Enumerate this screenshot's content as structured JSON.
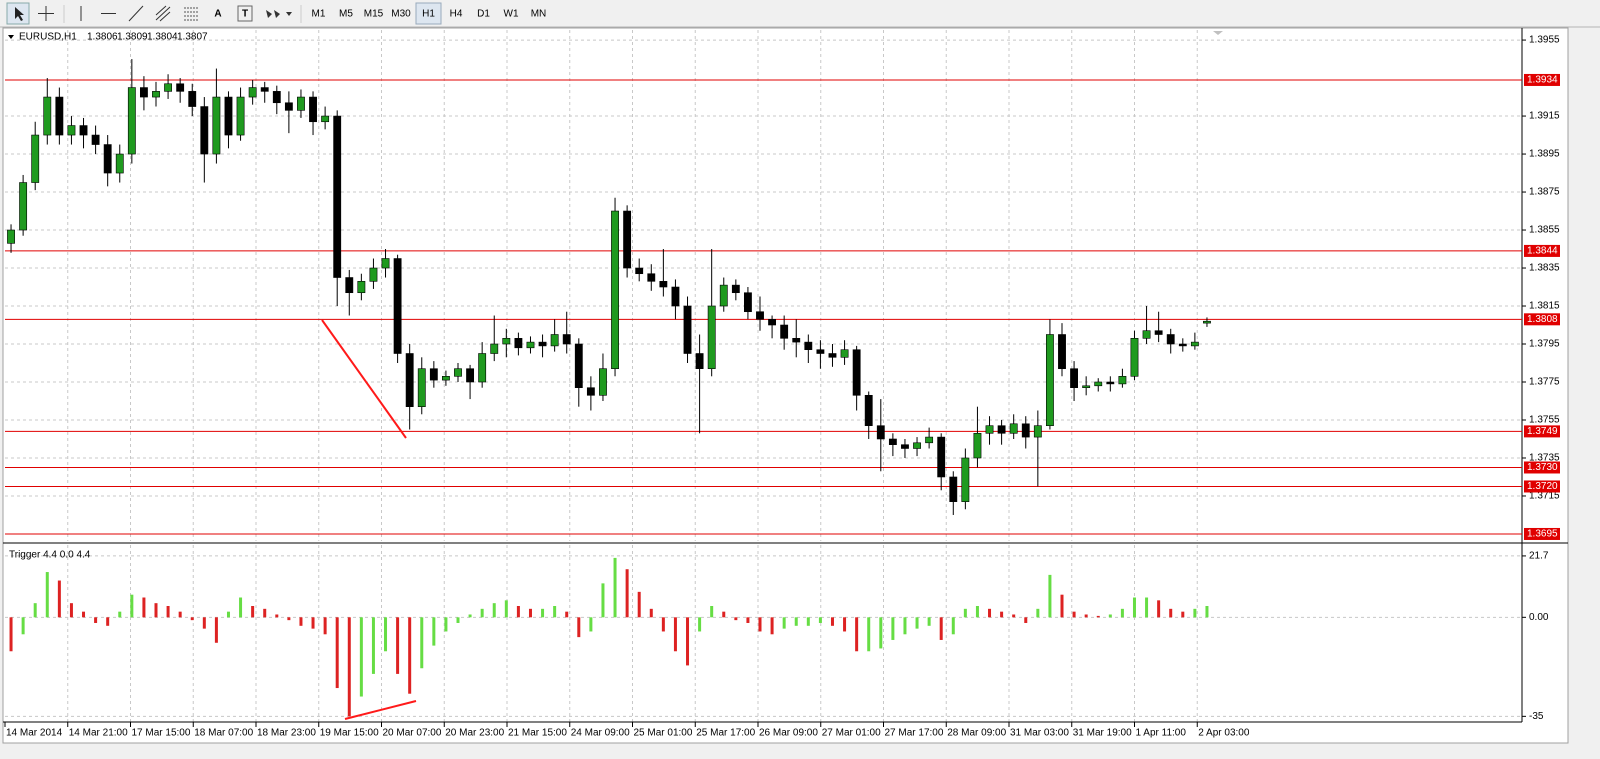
{
  "toolbar": {
    "timeframes": [
      "M1",
      "M5",
      "M15",
      "M30",
      "H1",
      "H4",
      "D1",
      "W1",
      "MN"
    ],
    "active": "H1",
    "text_tools": [
      "A",
      "T"
    ]
  },
  "chart_data": [
    {
      "type": "candlestick",
      "title": "EURUSD,H1",
      "up_color": "#1f9a1f",
      "down_color": "#000000",
      "wick_color": "#000000",
      "candles": [
        [
          1.3848,
          1.3858,
          1.3843,
          1.3855
        ],
        [
          1.3855,
          1.3884,
          1.3852,
          1.388
        ],
        [
          1.388,
          1.3912,
          1.3876,
          1.3905
        ],
        [
          1.3905,
          1.3935,
          1.39,
          1.3925
        ],
        [
          1.3925,
          1.393,
          1.39,
          1.3905
        ],
        [
          1.3905,
          1.3915,
          1.39,
          1.391
        ],
        [
          1.391,
          1.3914,
          1.3898,
          1.3905
        ],
        [
          1.3905,
          1.391,
          1.3895,
          1.39
        ],
        [
          1.39,
          1.3905,
          1.3878,
          1.3885
        ],
        [
          1.3885,
          1.39,
          1.388,
          1.3895
        ],
        [
          1.3895,
          1.3945,
          1.389,
          1.393
        ],
        [
          1.393,
          1.3936,
          1.3918,
          1.3925
        ],
        [
          1.3925,
          1.3933,
          1.392,
          1.3928
        ],
        [
          1.3928,
          1.3937,
          1.3924,
          1.3932
        ],
        [
          1.3932,
          1.3935,
          1.3922,
          1.3928
        ],
        [
          1.3928,
          1.3932,
          1.3915,
          1.392
        ],
        [
          1.392,
          1.3925,
          1.388,
          1.3895
        ],
        [
          1.3895,
          1.394,
          1.389,
          1.3925
        ],
        [
          1.3925,
          1.3928,
          1.3898,
          1.3905
        ],
        [
          1.3905,
          1.393,
          1.3902,
          1.3925
        ],
        [
          1.3925,
          1.3934,
          1.3921,
          1.393
        ],
        [
          1.393,
          1.3933,
          1.3922,
          1.3928
        ],
        [
          1.3928,
          1.3931,
          1.3916,
          1.3922
        ],
        [
          1.3922,
          1.3928,
          1.3906,
          1.3918
        ],
        [
          1.3918,
          1.3929,
          1.3914,
          1.3925
        ],
        [
          1.3925,
          1.3928,
          1.3905,
          1.3912
        ],
        [
          1.3912,
          1.392,
          1.3908,
          1.3915
        ],
        [
          1.3915,
          1.3918,
          1.3815,
          1.383
        ],
        [
          1.383,
          1.3834,
          1.381,
          1.3822
        ],
        [
          1.3822,
          1.3832,
          1.3818,
          1.3828
        ],
        [
          1.3828,
          1.384,
          1.3824,
          1.3835
        ],
        [
          1.3835,
          1.3845,
          1.383,
          1.384
        ],
        [
          1.384,
          1.3842,
          1.3785,
          1.379
        ],
        [
          1.379,
          1.3795,
          1.375,
          1.3762
        ],
        [
          1.3762,
          1.3788,
          1.3758,
          1.3782
        ],
        [
          1.3782,
          1.3786,
          1.3772,
          1.3776
        ],
        [
          1.3776,
          1.3781,
          1.3773,
          1.3778
        ],
        [
          1.3778,
          1.3785,
          1.3775,
          1.3782
        ],
        [
          1.3782,
          1.3784,
          1.3766,
          1.3775
        ],
        [
          1.3775,
          1.3796,
          1.3772,
          1.379
        ],
        [
          1.379,
          1.381,
          1.3786,
          1.3795
        ],
        [
          1.3795,
          1.3803,
          1.3788,
          1.3798
        ],
        [
          1.3798,
          1.3801,
          1.3789,
          1.3793
        ],
        [
          1.3793,
          1.3799,
          1.379,
          1.3796
        ],
        [
          1.3796,
          1.38,
          1.3788,
          1.3794
        ],
        [
          1.3794,
          1.3808,
          1.3791,
          1.38
        ],
        [
          1.38,
          1.3812,
          1.379,
          1.3795
        ],
        [
          1.3795,
          1.3798,
          1.3762,
          1.3772
        ],
        [
          1.3772,
          1.3778,
          1.376,
          1.3768
        ],
        [
          1.3768,
          1.379,
          1.3765,
          1.3782
        ],
        [
          1.3782,
          1.3872,
          1.3778,
          1.3865
        ],
        [
          1.3865,
          1.3868,
          1.383,
          1.3835
        ],
        [
          1.3835,
          1.384,
          1.3828,
          1.3832
        ],
        [
          1.3832,
          1.3837,
          1.3823,
          1.3828
        ],
        [
          1.3828,
          1.3845,
          1.382,
          1.3825
        ],
        [
          1.3825,
          1.3829,
          1.3808,
          1.3815
        ],
        [
          1.3815,
          1.382,
          1.3785,
          1.379
        ],
        [
          1.379,
          1.38,
          1.3748,
          1.3782
        ],
        [
          1.3782,
          1.3845,
          1.3778,
          1.3815
        ],
        [
          1.3815,
          1.383,
          1.3812,
          1.3826
        ],
        [
          1.3826,
          1.3829,
          1.3818,
          1.3822
        ],
        [
          1.3822,
          1.3825,
          1.3808,
          1.3812
        ],
        [
          1.3812,
          1.382,
          1.3802,
          1.3808
        ],
        [
          1.3808,
          1.381,
          1.3798,
          1.3805
        ],
        [
          1.3805,
          1.381,
          1.3792,
          1.3798
        ],
        [
          1.3798,
          1.3808,
          1.3788,
          1.3796
        ],
        [
          1.3796,
          1.38,
          1.3785,
          1.3792
        ],
        [
          1.3792,
          1.3797,
          1.3782,
          1.379
        ],
        [
          1.379,
          1.3795,
          1.3783,
          1.3788
        ],
        [
          1.3788,
          1.3797,
          1.3784,
          1.3792
        ],
        [
          1.3792,
          1.3794,
          1.376,
          1.3768
        ],
        [
          1.3768,
          1.377,
          1.3745,
          1.3752
        ],
        [
          1.3752,
          1.3766,
          1.3728,
          1.3745
        ],
        [
          1.3745,
          1.3748,
          1.3736,
          1.3742
        ],
        [
          1.3742,
          1.3745,
          1.3735,
          1.374
        ],
        [
          1.374,
          1.3746,
          1.3736,
          1.3743
        ],
        [
          1.3743,
          1.3751,
          1.374,
          1.3746
        ],
        [
          1.3746,
          1.3748,
          1.3718,
          1.3725
        ],
        [
          1.3725,
          1.3728,
          1.3705,
          1.3712
        ],
        [
          1.3712,
          1.374,
          1.3708,
          1.3735
        ],
        [
          1.3735,
          1.3762,
          1.373,
          1.3748
        ],
        [
          1.3748,
          1.3757,
          1.3742,
          1.3752
        ],
        [
          1.3752,
          1.3755,
          1.3742,
          1.3748
        ],
        [
          1.3748,
          1.3758,
          1.3745,
          1.3753
        ],
        [
          1.3753,
          1.3757,
          1.374,
          1.3746
        ],
        [
          1.3746,
          1.376,
          1.372,
          1.3752
        ],
        [
          1.3752,
          1.3808,
          1.375,
          1.38
        ],
        [
          1.38,
          1.3806,
          1.3778,
          1.3782
        ],
        [
          1.3782,
          1.3786,
          1.3765,
          1.3772
        ],
        [
          1.3772,
          1.3778,
          1.3768,
          1.3773
        ],
        [
          1.3773,
          1.3777,
          1.377,
          1.3775
        ],
        [
          1.3775,
          1.3778,
          1.377,
          1.3774
        ],
        [
          1.3774,
          1.3782,
          1.3772,
          1.3778
        ],
        [
          1.3778,
          1.3802,
          1.3776,
          1.3798
        ],
        [
          1.3798,
          1.3815,
          1.3795,
          1.3802
        ],
        [
          1.3802,
          1.3812,
          1.3796,
          1.38
        ],
        [
          1.38,
          1.3803,
          1.379,
          1.3795
        ],
        [
          1.3795,
          1.3798,
          1.3791,
          1.3794
        ],
        [
          1.3794,
          1.3801,
          1.3792,
          1.3796
        ],
        [
          1.3806,
          1.3809,
          1.3804,
          1.3807
        ]
      ],
      "ylim": [
        1.36913,
        1.39603
      ],
      "yticks": [
        1.3955,
        1.3915,
        1.3895,
        1.3875,
        1.3855,
        1.3835,
        1.3815,
        1.3795,
        1.3775,
        1.3755,
        1.3735,
        1.3715
      ],
      "levels": [
        1.3934,
        1.3844,
        1.3808,
        1.3749,
        {
          "value": 1.373,
          "label": "1.3730"
        },
        {
          "value": 1.372,
          "label": "1.3720"
        },
        1.3695
      ],
      "level_color": "#e00000",
      "x_labels": [
        "14 Mar 2014",
        "14 Mar 21:00",
        "17 Mar 15:00",
        "18 Mar 07:00",
        "18 Mar 23:00",
        "19 Mar 15:00",
        "20 Mar 07:00",
        "20 Mar 23:00",
        "21 Mar 15:00",
        "24 Mar 09:00",
        "25 Mar 01:00",
        "25 Mar 17:00",
        "26 Mar 09:00",
        "27 Mar 01:00",
        "27 Mar 17:00",
        "28 Mar 09:00",
        "31 Mar 03:00",
        "31 Mar 19:00",
        "1 Apr 11:00",
        "2 Apr 03:00"
      ],
      "grid": true
    },
    {
      "type": "histogram",
      "title": "Trigger 4.4 0.0 4.4",
      "up_color": "#66dd44",
      "down_color": "#dd2222",
      "values": [
        -12,
        -6,
        5,
        16,
        13,
        5,
        2,
        -2,
        -3,
        2,
        8,
        7,
        5,
        4,
        2,
        -1,
        -4,
        -9,
        2,
        7,
        4,
        3,
        1,
        -1,
        -3,
        -4,
        -6,
        -25,
        -35,
        -28,
        -20,
        -12,
        -20,
        -27,
        -18,
        -10,
        -5,
        -2,
        1,
        3,
        5,
        6,
        4,
        3,
        3,
        4,
        2,
        -7,
        -5,
        12,
        21,
        17,
        9,
        3,
        -5,
        -12,
        -17,
        -5,
        4,
        2,
        -1,
        -2,
        -5,
        -6,
        -4,
        -3,
        -3,
        -2,
        -3,
        -5,
        -12,
        -12,
        -11,
        -8,
        -6,
        -4,
        -3,
        -8,
        -6,
        3,
        4,
        3,
        2,
        1,
        -2,
        3,
        15,
        8,
        2,
        1,
        0.5,
        1,
        3,
        7,
        7,
        6,
        3,
        2,
        3,
        4
      ],
      "ylim": [
        -37,
        24.5
      ],
      "yticks": [
        21.7,
        {
          "value": 0,
          "label": "0.00"
        },
        -35
      ],
      "grid": true
    }
  ]
}
